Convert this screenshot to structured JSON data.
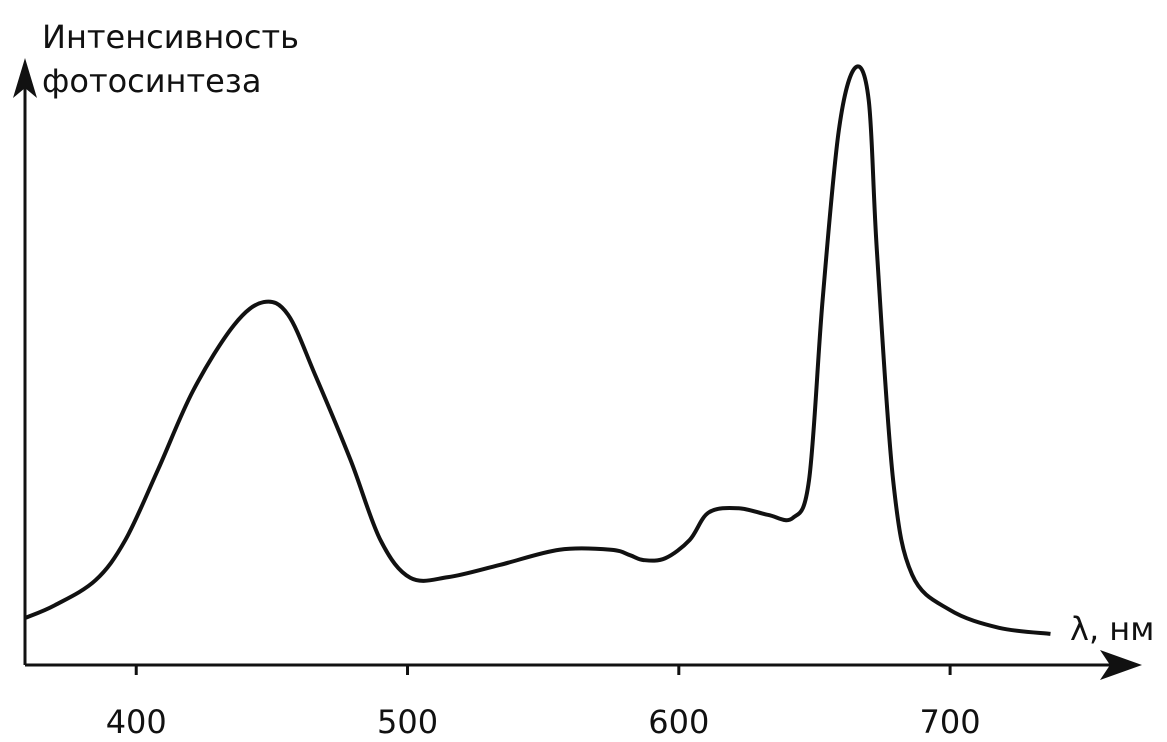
{
  "chart_data": {
    "type": "line",
    "y_label": [
      "Интенсивность",
      "фотосинтеза"
    ],
    "x_label": "λ, нм",
    "x": [
      359,
      370,
      385,
      396,
      408,
      421,
      436,
      447,
      456,
      466,
      479,
      490,
      501,
      515,
      534,
      556,
      575,
      582,
      587,
      595,
      604,
      611,
      622,
      633,
      642,
      648,
      653,
      659,
      665,
      670,
      673,
      679,
      686,
      700,
      718,
      737
    ],
    "series": [
      {
        "color": "#111111",
        "values": [
          7.7,
          9.8,
          13.9,
          20.5,
          32,
          45,
          55.7,
          59.5,
          57.4,
          47.5,
          33.6,
          20.5,
          14.3,
          14.4,
          16.4,
          18.9,
          18.9,
          18,
          17.2,
          17.5,
          20.5,
          25,
          25.7,
          24.6,
          24.1,
          30.3,
          59.8,
          87.7,
          97.9,
          92.6,
          68,
          30.3,
          14.8,
          9,
          6.1,
          5.1
        ]
      }
    ],
    "xlim": [
      359,
      770
    ],
    "ylim": [
      0,
      100
    ],
    "xticks": [
      400,
      500,
      600,
      700
    ]
  }
}
